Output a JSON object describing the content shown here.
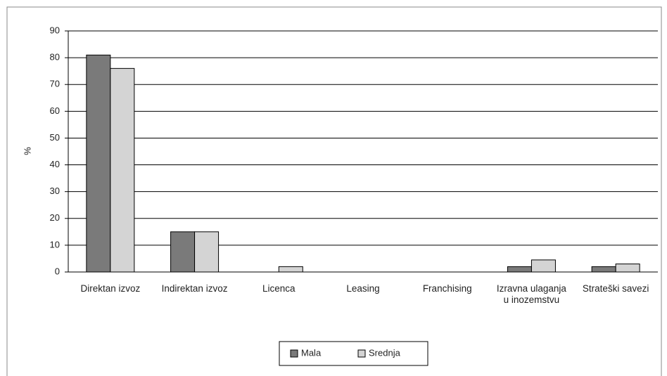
{
  "chart_data": {
    "type": "bar",
    "y_label": "%",
    "categories": [
      "Direktan izvoz",
      "Indirektan izvoz",
      "Licenca",
      "Leasing",
      "Franchising",
      "Izravna ulaganja u inozemstvu",
      "Strateški savezi"
    ],
    "series": [
      {
        "name": "Mala",
        "color": "#7a7a7a",
        "values": [
          81,
          15,
          0,
          0,
          0,
          2,
          2
        ]
      },
      {
        "name": "Srednja",
        "color": "#d4d4d4",
        "values": [
          76,
          15,
          2,
          0,
          0,
          4.5,
          3
        ]
      }
    ],
    "ylim": [
      0,
      90
    ],
    "yticks": [
      0,
      10,
      20,
      30,
      40,
      50,
      60,
      70,
      80,
      90
    ],
    "grid": true,
    "legend": "bottom"
  }
}
